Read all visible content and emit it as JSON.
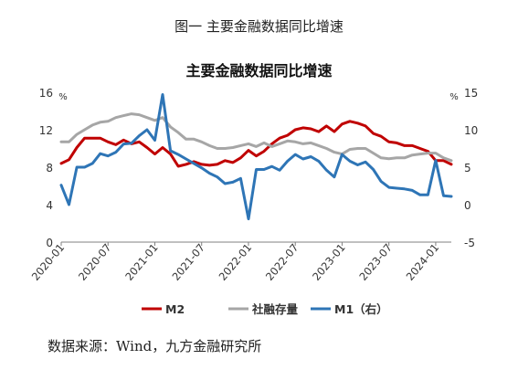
{
  "figure": {
    "caption": "图一  主要金融数据同比增速",
    "source": "数据来源：Wind，九方金融研究所"
  },
  "chart_data": {
    "type": "line",
    "title": "主要金融数据同比增速",
    "left_axis": {
      "unit": "%",
      "range": [
        0,
        16
      ],
      "ticks": [
        "0",
        "4",
        "8",
        "12",
        "16"
      ]
    },
    "right_axis": {
      "unit": "%",
      "range": [
        -5,
        15
      ],
      "ticks": [
        "-5",
        "0",
        "5",
        "10",
        "15"
      ]
    },
    "x_ticks": [
      "2020-01",
      "2020-07",
      "2021-01",
      "2021-07",
      "2022-01",
      "2022-07",
      "2023-01",
      "2023-07",
      "2024-01"
    ],
    "x_start": "2020-01",
    "legend_position": "bottom",
    "grid": false,
    "series": [
      {
        "name": "M2",
        "axis": "left",
        "color": "#c00000",
        "values": [
          8.4,
          8.8,
          10.1,
          11.1,
          11.1,
          11.1,
          10.7,
          10.4,
          10.9,
          10.5,
          10.7,
          10.1,
          9.4,
          10.1,
          9.4,
          8.1,
          8.3,
          8.6,
          8.3,
          8.2,
          8.3,
          8.7,
          8.5,
          9.0,
          9.8,
          9.2,
          9.7,
          10.5,
          11.1,
          11.4,
          12.0,
          12.2,
          12.1,
          11.8,
          12.4,
          11.8,
          12.6,
          12.9,
          12.7,
          12.4,
          11.6,
          11.3,
          10.7,
          10.6,
          10.3,
          10.3,
          10.0,
          9.7,
          8.7,
          8.7,
          8.3
        ]
      },
      {
        "name": "社融存量",
        "axis": "left",
        "color": "#a6a6a6",
        "values": [
          10.7,
          10.7,
          11.5,
          12.0,
          12.5,
          12.8,
          12.9,
          13.3,
          13.5,
          13.7,
          13.6,
          13.3,
          13.0,
          13.3,
          12.3,
          11.7,
          11.0,
          11.0,
          10.7,
          10.3,
          10.0,
          10.0,
          10.1,
          10.3,
          10.5,
          10.2,
          10.6,
          10.2,
          10.5,
          10.8,
          10.7,
          10.5,
          10.6,
          10.3,
          10.0,
          9.6,
          9.4,
          9.9,
          10.0,
          10.0,
          9.5,
          9.0,
          8.9,
          9.0,
          9.0,
          9.3,
          9.4,
          9.5,
          9.5,
          9.0,
          8.7
        ]
      },
      {
        "name": "M1（右）",
        "axis": "right",
        "color": "#2e75b6",
        "values": [
          2.6,
          0.0,
          5.0,
          5.0,
          5.5,
          6.8,
          6.5,
          7.0,
          8.1,
          8.2,
          9.2,
          10.0,
          8.6,
          14.7,
          7.2,
          6.7,
          6.1,
          5.5,
          4.9,
          4.2,
          3.7,
          2.8,
          3.0,
          3.5,
          -1.9,
          4.7,
          4.7,
          5.1,
          4.6,
          5.8,
          6.7,
          6.1,
          6.4,
          5.8,
          4.6,
          3.7,
          6.7,
          5.8,
          5.3,
          5.7,
          4.7,
          3.1,
          2.3,
          2.2,
          2.1,
          1.9,
          1.3,
          1.3,
          5.9,
          1.2,
          1.1
        ]
      }
    ]
  }
}
